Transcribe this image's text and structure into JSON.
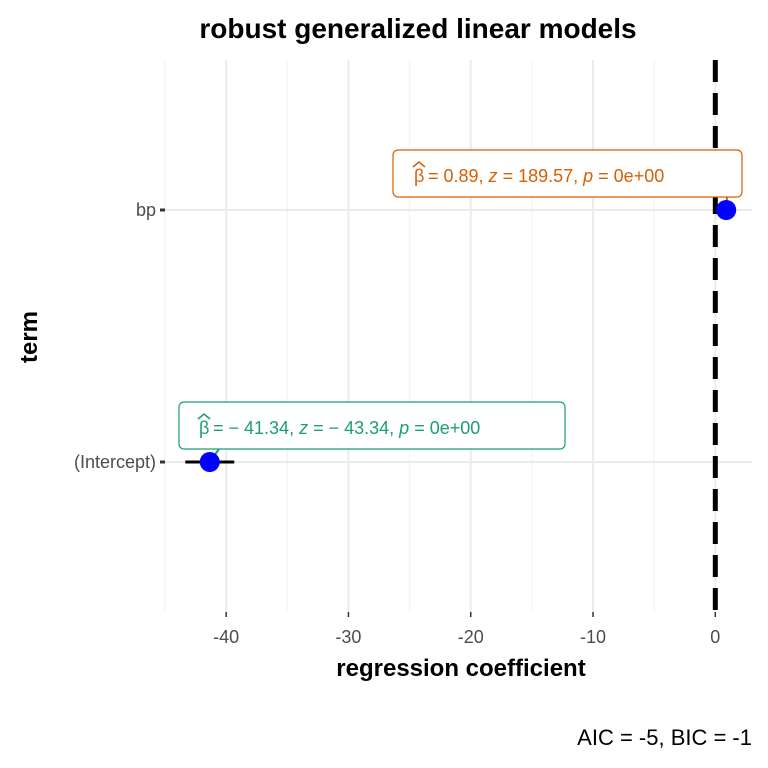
{
  "chart_data": {
    "type": "scatter",
    "title": "robust generalized linear models",
    "xlabel": "regression coefficient",
    "ylabel": "term",
    "caption": "AIC = -5, BIC = -1",
    "xlim": [
      -45,
      3
    ],
    "x_ticks": [
      -40,
      -30,
      -20,
      -10,
      0
    ],
    "x_tick_labels": [
      "-40",
      "-30",
      "-20",
      "-10",
      "0"
    ],
    "categories": [
      "(Intercept)",
      "bp"
    ],
    "grid": true,
    "reference_line": 0,
    "point_color": "#0000ff",
    "points": [
      {
        "term": "(Intercept)",
        "estimate": -41.34,
        "conf_low": -43.34,
        "conf_high": -39.34,
        "label_parts": [
          "= − 41.34,",
          "z",
          "= − 43.34,",
          "p",
          "= 0e+00"
        ],
        "label_color": "#1b9e77"
      },
      {
        "term": "bp",
        "estimate": 0.89,
        "conf_low": 0.84,
        "conf_high": 0.94,
        "label_parts": [
          "= 0.89,",
          "z",
          "= 189.57,",
          "p",
          "= 0e+00"
        ],
        "label_color": "#d95f02"
      }
    ]
  }
}
